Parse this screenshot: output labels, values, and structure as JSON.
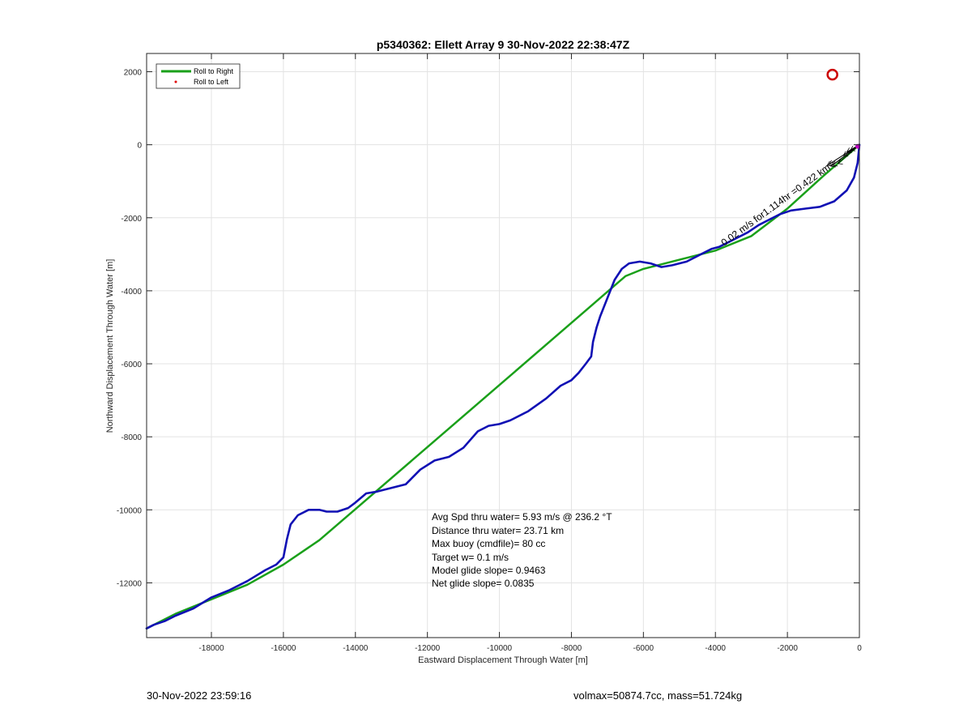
{
  "chart_data": {
    "type": "line",
    "title": "p5340362: Ellett Array 9 30-Nov-2022 22:38:47Z",
    "xlabel": "Eastward Displacement Through Water [m]",
    "ylabel": "Northward Displacement Through Water [m]",
    "xlim": [
      -19800,
      0
    ],
    "ylim": [
      -13500,
      2500
    ],
    "xticks": [
      -18000,
      -16000,
      -14000,
      -12000,
      -10000,
      -8000,
      -6000,
      -4000,
      -2000,
      0
    ],
    "yticks": [
      2000,
      0,
      -2000,
      -4000,
      -6000,
      -8000,
      -10000,
      -12000
    ],
    "grid": true,
    "legend_position": "top-left",
    "legend": [
      {
        "label": "Roll to Right",
        "color": "#1aa01a",
        "style": "line"
      },
      {
        "label": "Roll to Left",
        "color": "#e00000",
        "style": "dot"
      }
    ],
    "series": [
      {
        "name": "Roll to Right",
        "color": "#1aa01a",
        "x": [
          0,
          -1000,
          -2000,
          -3000,
          -4000,
          -5000,
          -6000,
          -6500,
          -8000,
          -10000,
          -12000,
          -14000,
          -15000,
          -16000,
          -17000,
          -18000,
          -19000,
          -19800
        ],
        "y": [
          0,
          -850,
          -1750,
          -2500,
          -2900,
          -3150,
          -3400,
          -3600,
          -4880,
          -6580,
          -8280,
          -9980,
          -10830,
          -11500,
          -12050,
          -12450,
          -12850,
          -13250
        ]
      },
      {
        "color": "#1010b4",
        "x": [
          0,
          -50,
          -150,
          -350,
          -700,
          -1100,
          -1500,
          -1900,
          -2200,
          -2500,
          -2800,
          -3100,
          -3400,
          -3700,
          -3900,
          -4100,
          -4400,
          -4800,
          -5200,
          -5500,
          -5800,
          -6100,
          -6400,
          -6600,
          -6800,
          -7000,
          -7200,
          -7300,
          -7400,
          -7450,
          -7600,
          -7800,
          -8000,
          -8300,
          -8700,
          -9200,
          -9700,
          -10000,
          -10300,
          -10600,
          -11000,
          -11400,
          -11800,
          -12200,
          -12600,
          -13000,
          -13400,
          -13700,
          -14000,
          -14200,
          -14500,
          -14800,
          -15000,
          -15300,
          -15600,
          -15800,
          -15900,
          -16000,
          -16200,
          -16500,
          -17000,
          -17500,
          -18000,
          -18500,
          -19000,
          -19300,
          -19600,
          -19800
        ],
        "y": [
          0,
          -500,
          -900,
          -1250,
          -1550,
          -1700,
          -1750,
          -1800,
          -1900,
          -2050,
          -2200,
          -2400,
          -2550,
          -2700,
          -2800,
          -2850,
          -3000,
          -3200,
          -3300,
          -3350,
          -3250,
          -3200,
          -3250,
          -3400,
          -3700,
          -4200,
          -4700,
          -5000,
          -5400,
          -5800,
          -6000,
          -6250,
          -6450,
          -6600,
          -6950,
          -7300,
          -7550,
          -7650,
          -7700,
          -7850,
          -8300,
          -8550,
          -8650,
          -8900,
          -9300,
          -9400,
          -9500,
          -9550,
          -9800,
          -9950,
          -10050,
          -10050,
          -10000,
          -10000,
          -10150,
          -10400,
          -10800,
          -11300,
          -11500,
          -11650,
          -11950,
          -12200,
          -12400,
          -12700,
          -12900,
          -13050,
          -13150,
          -13250
        ]
      }
    ],
    "current_arrows_label": "0.02 m/s for1.114hr =0.422 km",
    "markers": [
      {
        "type": "circle",
        "color": "#cc0000",
        "x": -750,
        "y": 1920
      }
    ],
    "annotations": [
      "Avg Spd thru water=  5.93 m/s @ 236.2 °T",
      "Distance thru water= 23.71 km",
      "Max buoy (cmdfile)= 80 cc",
      "Target w= 0.1 m/s",
      "Model glide slope= 0.9463",
      "Net glide slope= 0.0835"
    ]
  },
  "footer": {
    "timestamp": "30-Nov-2022 23:59:16",
    "volume_mass": "volmax=50874.7cc, mass=51.724kg"
  }
}
